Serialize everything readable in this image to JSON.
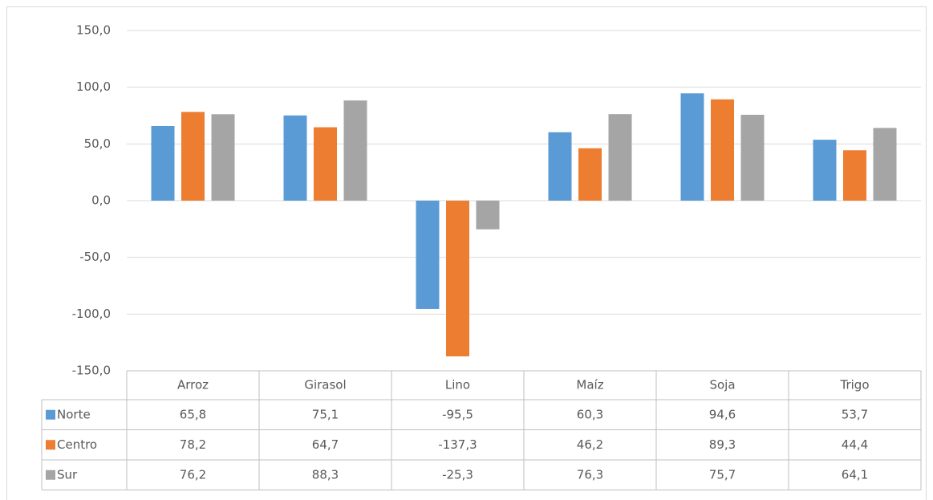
{
  "chart_data": {
    "type": "bar",
    "categories": [
      "Arroz",
      "Girasol",
      "Lino",
      "Maíz",
      "Soja",
      "Trigo"
    ],
    "series": [
      {
        "name": "Norte",
        "color": "#5b9bd5",
        "values": [
          65.8,
          75.1,
          -95.5,
          60.3,
          94.6,
          53.7
        ],
        "value_labels": [
          "65,8",
          "75,1",
          "-95,5",
          "60,3",
          "94,6",
          "53,7"
        ]
      },
      {
        "name": "Centro",
        "color": "#ed7d31",
        "values": [
          78.2,
          64.7,
          -137.3,
          46.2,
          89.3,
          44.4
        ],
        "value_labels": [
          "78,2",
          "64,7",
          "-137,3",
          "46,2",
          "89,3",
          "44,4"
        ]
      },
      {
        "name": "Sur",
        "color": "#a5a5a5",
        "values": [
          76.2,
          88.3,
          -25.3,
          76.3,
          75.7,
          64.1
        ],
        "value_labels": [
          "76,2",
          "88,3",
          "-25,3",
          "76,3",
          "75,7",
          "64,1"
        ]
      }
    ],
    "ylim": [
      -150,
      150
    ],
    "yticks": [
      {
        "value": -150,
        "label": "-150,0"
      },
      {
        "value": -100,
        "label": "-100,0"
      },
      {
        "value": -50,
        "label": "-50,0"
      },
      {
        "value": 0,
        "label": "0,0"
      },
      {
        "value": 50,
        "label": "50,0"
      },
      {
        "value": 100,
        "label": "100,0"
      },
      {
        "value": 150,
        "label": "150,0"
      }
    ],
    "grid": true
  }
}
